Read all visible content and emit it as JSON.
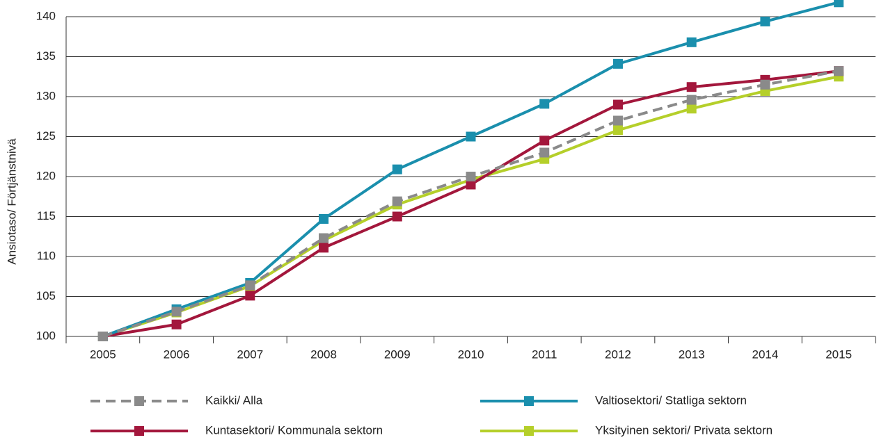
{
  "chart_data": {
    "type": "line",
    "y_label": "Ansiotaso/ Förtjänstnivä",
    "categories": [
      "2005",
      "2006",
      "2007",
      "2008",
      "2009",
      "2010",
      "2011",
      "2012",
      "2013",
      "2014",
      "2015"
    ],
    "series": [
      {
        "name": "Kaikki/ Alla",
        "color": "#8a8a8a",
        "dashed": true,
        "values": [
          100,
          103.1,
          106.4,
          112.3,
          116.9,
          120,
          123,
          127,
          129.6,
          131.5,
          133.2
        ]
      },
      {
        "name": "Valtiosektori/ Statliga sektorn",
        "color": "#1a8fad",
        "dashed": false,
        "values": [
          100,
          103.4,
          106.7,
          114.7,
          120.9,
          125,
          129.1,
          134.1,
          136.8,
          139.4,
          141.8
        ]
      },
      {
        "name": "Kuntasektori/ Kommunala sektorn",
        "color": "#a3173c",
        "dashed": false,
        "values": [
          100,
          101.5,
          105.1,
          111.1,
          115,
          119,
          124.5,
          129,
          131.2,
          132.1,
          133.2
        ]
      },
      {
        "name": "Yksityinen sektori/ Privata sektorn",
        "color": "#b5cf2a",
        "dashed": false,
        "values": [
          100,
          103,
          106.3,
          112,
          116.5,
          119.6,
          122.2,
          125.8,
          128.5,
          130.7,
          132.5
        ]
      }
    ],
    "ylim": [
      100,
      142
    ],
    "yticks": [
      100,
      105,
      110,
      115,
      120,
      125,
      130,
      135,
      140
    ],
    "grid": true,
    "legend": "bottom"
  }
}
